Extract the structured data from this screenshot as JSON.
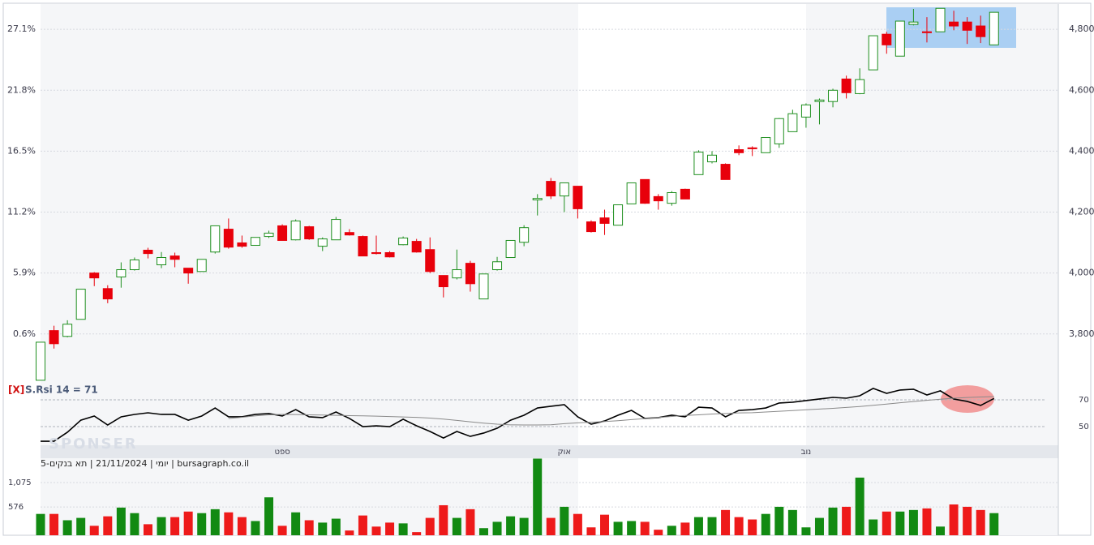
{
  "chart_data": [
    {
      "type": "candlestick",
      "ylim": [
        3645,
        4883
      ],
      "yticks": [
        {
          "value": 3800,
          "label": "3,800"
        },
        {
          "value": 4000,
          "label": "4,000"
        },
        {
          "value": 4200,
          "label": "4,200"
        },
        {
          "value": 4400,
          "label": "4,400"
        },
        {
          "value": 4600,
          "label": "4,600"
        },
        {
          "value": 4800,
          "label": "4,800"
        }
      ],
      "y2lim": [
        -3.5,
        29.3
      ],
      "y2ticks": [
        {
          "value": 0.6,
          "label": "0.6%"
        },
        {
          "value": 5.9,
          "label": "5.9%"
        },
        {
          "value": 11.2,
          "label": "11.2%"
        },
        {
          "value": 16.5,
          "label": "16.5%"
        },
        {
          "value": 21.8,
          "label": "21.8%"
        },
        {
          "value": 27.1,
          "label": "27.1%"
        }
      ],
      "grid": true,
      "up_color": "#1f8f1f",
      "down_color": "#e8000b",
      "categories": [
        null,
        null,
        null,
        null,
        null,
        null,
        null,
        null,
        null,
        null,
        null,
        null,
        null,
        null,
        null,
        null,
        null,
        null,
        "ספט",
        null,
        null,
        null,
        null,
        null,
        null,
        null,
        null,
        null,
        null,
        null,
        null,
        null,
        null,
        null,
        null,
        null,
        null,
        null,
        null,
        "אוק",
        null,
        null,
        null,
        null,
        null,
        null,
        null,
        null,
        null,
        null,
        null,
        null,
        null,
        null,
        null,
        null,
        null,
        "נוב",
        null,
        null,
        null,
        null,
        null,
        null,
        null,
        null,
        null,
        null,
        null,
        null,
        null,
        null
      ],
      "open": [
        3648,
        3811,
        3792,
        3848,
        4000,
        3949,
        3987,
        4011,
        4075,
        4027,
        4056,
        4016,
        4005,
        4069,
        4144,
        4099,
        4091,
        4120,
        4155,
        4109,
        4152,
        4088,
        4109,
        4133,
        4120,
        4067,
        4067,
        4093,
        4104,
        4077,
        3992,
        3984,
        4032,
        3915,
        4011,
        4051,
        4101,
        4240,
        4301,
        4253,
        4285,
        4168,
        4181,
        4157,
        4227,
        4307,
        4251,
        4229,
        4275,
        4323,
        4365,
        4357,
        4405,
        4411,
        4395,
        4424,
        4464,
        4512,
        4563,
        4563,
        4637,
        4589,
        4667,
        4784,
        4712,
        4816,
        4792,
        4792,
        4824,
        4824,
        4811,
        4749
      ],
      "high": [
        3773,
        3827,
        3845,
        3947,
        4003,
        3960,
        4035,
        4051,
        4083,
        4069,
        4067,
        4016,
        4045,
        4155,
        4179,
        4123,
        4117,
        4139,
        4160,
        4176,
        4155,
        4117,
        4184,
        4144,
        4123,
        4123,
        4072,
        4120,
        4112,
        4117,
        3992,
        4077,
        4040,
        3997,
        4053,
        4107,
        4157,
        4259,
        4312,
        4296,
        4285,
        4173,
        4208,
        4224,
        4296,
        4307,
        4259,
        4269,
        4277,
        4403,
        4400,
        4360,
        4419,
        4416,
        4445,
        4509,
        4536,
        4557,
        4573,
        4605,
        4648,
        4672,
        4779,
        4792,
        4827,
        4867,
        4840,
        4869,
        4861,
        4840,
        4845,
        4856
      ],
      "low": [
        3648,
        3752,
        3789,
        3848,
        3957,
        3901,
        3952,
        4008,
        4048,
        4016,
        4019,
        3965,
        4005,
        4064,
        4080,
        4083,
        4091,
        4115,
        4107,
        4107,
        4109,
        4072,
        4109,
        4123,
        4056,
        4061,
        4051,
        4091,
        4067,
        4000,
        3920,
        3979,
        3939,
        3915,
        4008,
        4051,
        4088,
        4189,
        4243,
        4200,
        4179,
        4133,
        4125,
        4157,
        4227,
        4227,
        4208,
        4221,
        4243,
        4323,
        4360,
        4307,
        4387,
        4384,
        4395,
        4411,
        4464,
        4477,
        4488,
        4544,
        4573,
        4587,
        4667,
        4720,
        4712,
        4813,
        4757,
        4792,
        4797,
        4752,
        4755,
        4749
      ],
      "close": [
        3773,
        3768,
        3832,
        3947,
        3984,
        3915,
        4011,
        4043,
        4064,
        4051,
        4045,
        4000,
        4045,
        4155,
        4085,
        4088,
        4117,
        4131,
        4107,
        4171,
        4112,
        4112,
        4176,
        4125,
        4056,
        4064,
        4053,
        4115,
        4069,
        4005,
        3955,
        4011,
        3965,
        3997,
        4037,
        4107,
        4149,
        4245,
        4253,
        4296,
        4211,
        4136,
        4163,
        4224,
        4296,
        4229,
        4237,
        4264,
        4243,
        4397,
        4387,
        4307,
        4395,
        4408,
        4445,
        4507,
        4523,
        4552,
        4568,
        4600,
        4592,
        4635,
        4779,
        4749,
        4827,
        4824,
        4789,
        4869,
        4811,
        4797,
        4776,
        4856
      ],
      "annotations": [
        "SPONSER",
        "יומי | 21/11/2024 | תא בנקים-5 | bursagraph.co.il"
      ]
    },
    {
      "type": "line",
      "close_button": "[X]",
      "indicator_label": "S.Rsi 14 = 71",
      "ylim": [
        36.7,
        83.9
      ],
      "yticks": [
        50,
        70
      ],
      "series": [
        {
          "color": "#000000",
          "values": [
            39.1,
            39.1,
            45.8,
            54.8,
            57.9,
            51.2,
            57.3,
            59.1,
            60.3,
            59.1,
            59.1,
            54.8,
            57.9,
            63.9,
            57.3,
            57.3,
            59.1,
            59.7,
            57.9,
            62.7,
            57.3,
            56.7,
            60.9,
            56.1,
            50,
            50.6,
            50,
            55.5,
            50.6,
            46.4,
            41.5,
            46.4,
            42.7,
            45.2,
            48.8,
            54.8,
            58.5,
            63.9,
            65.2,
            66.4,
            57.3,
            51.8,
            54.2,
            58.5,
            62.1,
            56.1,
            56.7,
            58.5,
            57.3,
            64.5,
            63.9,
            57.3,
            62.1,
            62.7,
            63.9,
            67.6,
            68.2,
            69.4,
            70.6,
            71.8,
            71.2,
            73,
            78.5,
            74.8,
            77.3,
            77.9,
            73.6,
            76.7,
            70.6,
            68.8,
            65.8,
            71
          ]
        },
        {
          "color": "#8a8a8a",
          "values": [
            null,
            null,
            null,
            null,
            null,
            null,
            null,
            null,
            null,
            null,
            null,
            null,
            null,
            null,
            56.1,
            57,
            58,
            58.8,
            59.1,
            59,
            58.8,
            58.6,
            58.4,
            58.2,
            58,
            57.8,
            57.5,
            57.2,
            56.9,
            56.4,
            55.6,
            54.6,
            53.6,
            52.6,
            51.8,
            51.3,
            51.2,
            51.2,
            51.4,
            52.2,
            52.8,
            53.3,
            53.8,
            54.4,
            55.2,
            56,
            56.8,
            57.6,
            58.3,
            58.8,
            59.4,
            59.8,
            60.2,
            60.4,
            60.9,
            61.4,
            62,
            62.6,
            63.1,
            63.6,
            64.3,
            65,
            65.9,
            66.8,
            67.8,
            68.7,
            69.6,
            70.4,
            71.2,
            71.7,
            72.1,
            72.4
          ]
        }
      ]
    },
    {
      "type": "bar",
      "ylim": [
        0,
        1570
      ],
      "yticks": [
        576,
        {
          "value": 1075,
          "label": "1,075"
        }
      ],
      "up_color": "#128a12",
      "down_color": "#ee1a1a",
      "values": [
        435,
        435,
        306,
        354,
        193,
        386,
        564,
        451,
        225,
        370,
        370,
        483,
        451,
        531,
        467,
        370,
        290,
        773,
        193,
        467,
        306,
        258,
        338,
        97,
        403,
        177,
        258,
        242,
        64,
        354,
        612,
        354,
        531,
        145,
        274,
        386,
        354,
        1562,
        354,
        580,
        435,
        161,
        419,
        274,
        290,
        274,
        113,
        193,
        258,
        370,
        370,
        515,
        370,
        322,
        435,
        580,
        515,
        161,
        354,
        564,
        580,
        1175,
        322,
        483,
        483,
        515,
        547,
        177,
        628,
        580,
        515,
        451
      ]
    }
  ]
}
